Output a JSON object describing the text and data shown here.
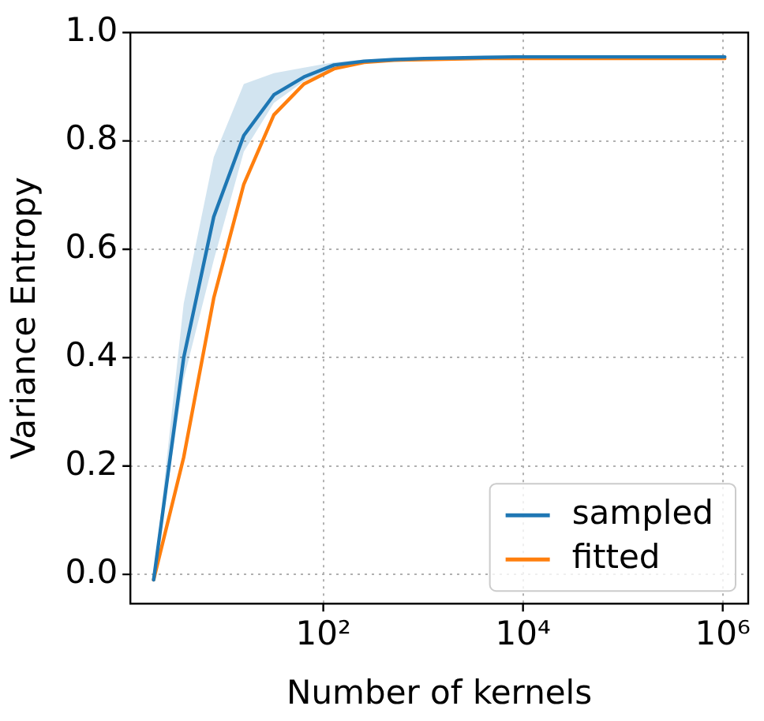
{
  "chart_data": {
    "type": "line",
    "xlabel": "Number of kernels",
    "ylabel": "Variance Entropy",
    "log": "x",
    "x": [
      2,
      4,
      8,
      16,
      32,
      64,
      128,
      256,
      512,
      1024,
      2048,
      4096,
      8192,
      16384,
      32768,
      65536,
      131072,
      262144,
      524288,
      1048576
    ],
    "series": [
      {
        "name": "sampled",
        "color": "#1f77b4",
        "values": [
          -0.01,
          0.4,
          0.66,
          0.81,
          0.885,
          0.918,
          0.94,
          0.947,
          0.95,
          0.952,
          0.953,
          0.954,
          0.955,
          0.955,
          0.955,
          0.955,
          0.955,
          0.955,
          0.955,
          0.955
        ],
        "lower": [
          -0.01,
          0.36,
          0.58,
          0.78,
          0.87,
          0.91,
          0.935,
          0.945,
          0.949,
          0.951,
          0.952,
          0.953,
          0.954,
          0.954,
          0.954,
          0.954,
          0.954,
          0.954,
          0.954,
          0.954
        ],
        "upper": [
          -0.01,
          0.5,
          0.77,
          0.905,
          0.925,
          0.935,
          0.945,
          0.95,
          0.952,
          0.954,
          0.955,
          0.956,
          0.956,
          0.956,
          0.956,
          0.956,
          0.956,
          0.956,
          0.956,
          0.956
        ]
      },
      {
        "name": "fitted",
        "color": "#ff7f0e",
        "values": [
          -0.01,
          0.216,
          0.51,
          0.72,
          0.848,
          0.905,
          0.933,
          0.945,
          0.949,
          0.95,
          0.951,
          0.952,
          0.952,
          0.952,
          0.952,
          0.952,
          0.952,
          0.952,
          0.952,
          0.952
        ]
      }
    ],
    "xlim": [
      1.17,
      1800000
    ],
    "xticks": [
      {
        "value": 100,
        "label": "10²"
      },
      {
        "value": 10000,
        "label": "10⁴"
      },
      {
        "value": 1000000,
        "label": "10⁶"
      }
    ],
    "ylim": [
      -0.054,
      1.0
    ],
    "yticks": [
      {
        "value": 0,
        "label": "0.0"
      },
      {
        "value": 0.2,
        "label": "0.2"
      },
      {
        "value": 0.4,
        "label": "0.4"
      },
      {
        "value": 0.6,
        "label": "0.6"
      },
      {
        "value": 0.8,
        "label": "0.8"
      },
      {
        "value": 1,
        "label": "1.0"
      }
    ],
    "grid": true,
    "line_style": "solid",
    "marker": "none",
    "legend": "bottom right"
  }
}
